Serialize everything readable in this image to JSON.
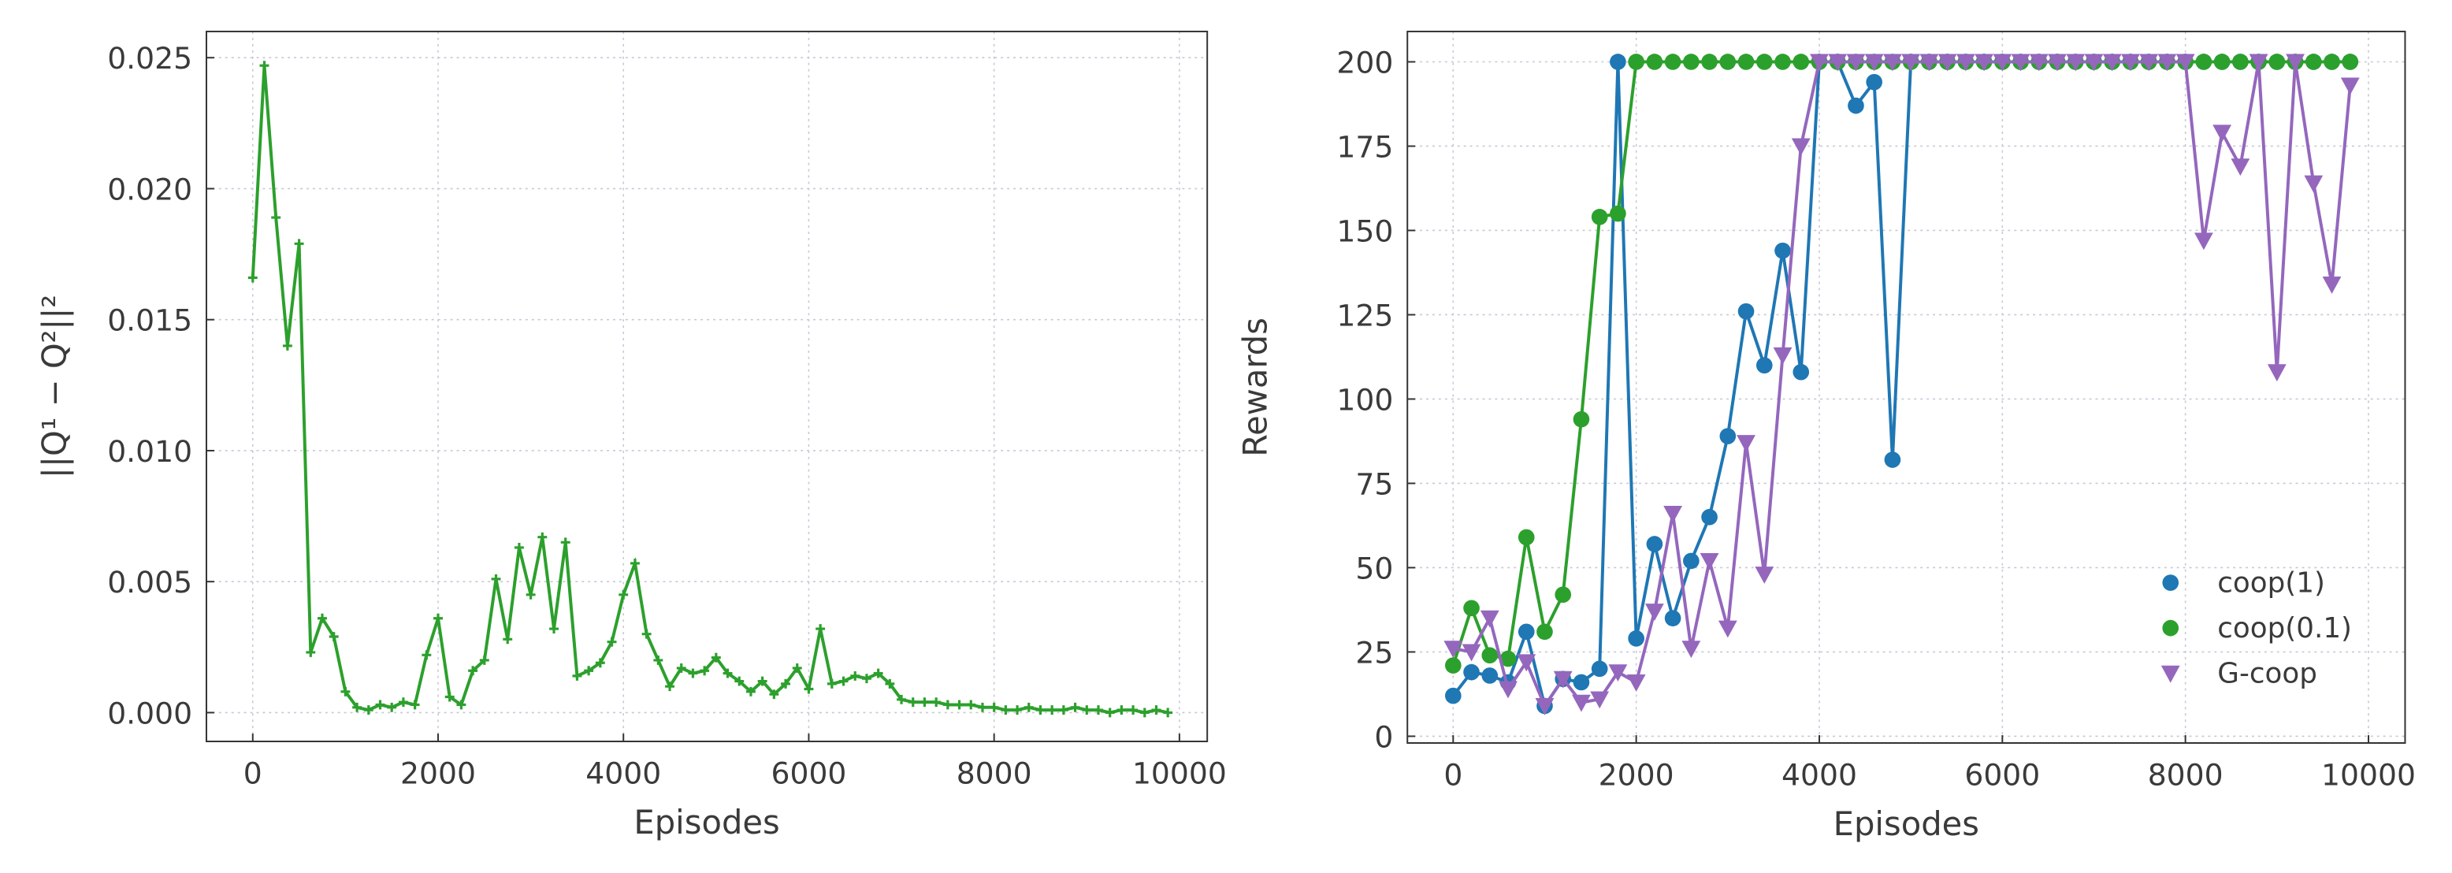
{
  "chart_data": [
    {
      "type": "line",
      "xlabel": "Episodes",
      "ylabel": "||Q¹ − Q²||²",
      "grid": true,
      "x": [
        0,
        125,
        250,
        375,
        500,
        625,
        750,
        875,
        1000,
        1125,
        1250,
        1375,
        1500,
        1625,
        1750,
        1875,
        2000,
        2125,
        2250,
        2375,
        2500,
        2625,
        2750,
        2875,
        3000,
        3125,
        3250,
        3375,
        3500,
        3625,
        3750,
        3875,
        4000,
        4125,
        4250,
        4375,
        4500,
        4625,
        4750,
        4875,
        5000,
        5125,
        5250,
        5375,
        5500,
        5625,
        5750,
        5875,
        6000,
        6125,
        6250,
        6375,
        6500,
        6625,
        6750,
        6875,
        7000,
        7125,
        7250,
        7375,
        7500,
        7625,
        7750,
        7875,
        8000,
        8125,
        8250,
        8375,
        8500,
        8625,
        8750,
        8875,
        9000,
        9125,
        9250,
        9375,
        9500,
        9625,
        9750,
        9875
      ],
      "series": [
        {
          "color": "#2ca02c",
          "marker": "plus",
          "values": [
            0.0166,
            0.0247,
            0.0189,
            0.014,
            0.0179,
            0.0023,
            0.0036,
            0.0029,
            0.0008,
            0.0002,
            0.0001,
            0.0003,
            0.0002,
            0.0004,
            0.0003,
            0.0022,
            0.0036,
            0.0006,
            0.0003,
            0.0016,
            0.002,
            0.0051,
            0.0028,
            0.0063,
            0.0045,
            0.0067,
            0.0032,
            0.0065,
            0.0014,
            0.0016,
            0.0019,
            0.0027,
            0.0045,
            0.0057,
            0.003,
            0.002,
            0.001,
            0.0017,
            0.0015,
            0.0016,
            0.0021,
            0.0015,
            0.0012,
            0.0008,
            0.0012,
            0.0007,
            0.0011,
            0.0017,
            0.0009,
            0.0032,
            0.0011,
            0.0012,
            0.0014,
            0.0013,
            0.0015,
            0.0011,
            0.0005,
            0.0004,
            0.0004,
            0.0004,
            0.0003,
            0.0003,
            0.0003,
            0.0002,
            0.0002,
            0.0001,
            0.0001,
            0.0002,
            0.0001,
            0.0001,
            0.0001,
            0.0002,
            0.0001,
            0.0001,
            0,
            0.0001,
            0.0001,
            0,
            0.0001,
            0
          ]
        }
      ],
      "xlim": [
        -500,
        10300
      ],
      "ylim": [
        -0.0011,
        0.026
      ],
      "xticks": [
        0,
        2000,
        4000,
        6000,
        8000,
        10000
      ],
      "yticks": [
        {
          "value": 0,
          "label": "0.000"
        },
        0.005,
        {
          "value": 0.01,
          "label": "0.010"
        },
        0.015,
        {
          "value": 0.02,
          "label": "0.020"
        },
        0.025
      ]
    },
    {
      "type": "line",
      "xlabel": "Episodes",
      "ylabel": "Rewards",
      "grid": true,
      "legend": "lower right",
      "x": [
        0,
        200,
        400,
        600,
        800,
        1000,
        1200,
        1400,
        1600,
        1800,
        2000,
        2200,
        2400,
        2600,
        2800,
        3000,
        3200,
        3400,
        3600,
        3800,
        4000,
        4200,
        4400,
        4600,
        4800,
        5000,
        5200,
        5400,
        5600,
        5800,
        6000,
        6200,
        6400,
        6600,
        6800,
        7000,
        7200,
        7400,
        7600,
        7800,
        8000,
        8200,
        8400,
        8600,
        8800,
        9000,
        9200,
        9400,
        9600,
        9800
      ],
      "series": [
        {
          "name": "coop(1)",
          "color": "#1f77b4",
          "marker": "circle",
          "values": [
            12,
            19,
            18,
            16,
            31,
            9,
            17,
            16,
            20,
            200,
            29,
            57,
            35,
            52,
            65,
            89,
            126,
            110,
            144,
            108,
            200,
            200,
            187,
            194,
            82,
            200,
            200,
            200,
            200,
            200,
            200,
            200,
            200,
            200,
            200,
            200,
            200,
            200,
            200,
            200,
            200,
            200,
            200,
            200,
            200,
            200,
            200,
            200,
            200,
            200
          ]
        },
        {
          "name": "coop(0.1)",
          "color": "#2ca02c",
          "marker": "circle",
          "values": [
            21,
            38,
            24,
            23,
            59,
            31,
            42,
            94,
            154,
            155,
            200,
            200,
            200,
            200,
            200,
            200,
            200,
            200,
            200,
            200,
            200,
            200,
            200,
            200,
            200,
            200,
            200,
            200,
            200,
            200,
            200,
            200,
            200,
            200,
            200,
            200,
            200,
            200,
            200,
            200,
            200,
            200,
            200,
            200,
            200,
            200,
            200,
            200,
            200,
            200
          ]
        },
        {
          "name": "G-coop",
          "color": "#9467bd",
          "marker": "triangle_down",
          "values": [
            26,
            25,
            35,
            14,
            22,
            9,
            17,
            10,
            11,
            19,
            16,
            37,
            66,
            26,
            52,
            32,
            87,
            48,
            113,
            175,
            200,
            200,
            200,
            200,
            200,
            200,
            200,
            200,
            200,
            200,
            200,
            200,
            200,
            200,
            200,
            200,
            200,
            200,
            200,
            200,
            200,
            147,
            179,
            169,
            200,
            108,
            200,
            164,
            134,
            193
          ]
        }
      ],
      "xlim": [
        -500,
        10400
      ],
      "ylim": [
        -2,
        209
      ],
      "xticks": [
        0,
        2000,
        4000,
        6000,
        8000,
        10000
      ],
      "yticks": [
        0,
        25,
        50,
        75,
        100,
        125,
        150,
        175,
        200
      ]
    }
  ]
}
